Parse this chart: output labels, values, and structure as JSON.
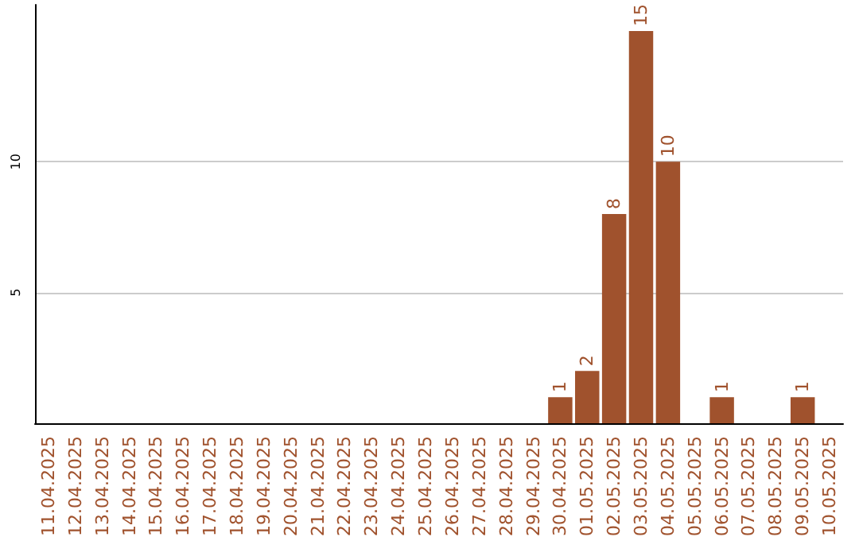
{
  "chart_data": {
    "type": "bar",
    "categories": [
      "11.04.2025",
      "12.04.2025",
      "13.04.2025",
      "14.04.2025",
      "15.04.2025",
      "16.04.2025",
      "17.04.2025",
      "18.04.2025",
      "19.04.2025",
      "20.04.2025",
      "21.04.2025",
      "22.04.2025",
      "23.04.2025",
      "24.04.2025",
      "25.04.2025",
      "26.04.2025",
      "27.04.2025",
      "28.04.2025",
      "29.04.2025",
      "30.04.2025",
      "01.05.2025",
      "02.05.2025",
      "03.05.2025",
      "04.05.2025",
      "05.05.2025",
      "06.05.2025",
      "07.05.2025",
      "08.05.2025",
      "09.05.2025",
      "10.05.2025"
    ],
    "values": [
      0,
      0,
      0,
      0,
      0,
      0,
      0,
      0,
      0,
      0,
      0,
      0,
      0,
      0,
      0,
      0,
      0,
      0,
      0,
      1,
      2,
      8,
      15,
      10,
      0,
      1,
      0,
      0,
      1,
      0
    ],
    "value_labels": [
      null,
      null,
      null,
      null,
      null,
      null,
      null,
      null,
      null,
      null,
      null,
      null,
      null,
      null,
      null,
      null,
      null,
      null,
      null,
      "1",
      "2",
      "8",
      "15",
      "10",
      null,
      "1",
      null,
      null,
      "1",
      null
    ],
    "color": "#a0522d",
    "ylim": [
      0,
      16
    ],
    "yticks": [
      5,
      10
    ],
    "grid": "y"
  }
}
